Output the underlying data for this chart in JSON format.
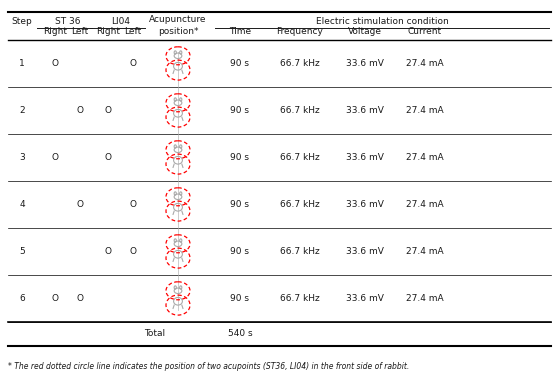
{
  "footnote": "* The red dotted circle line indicates the position of two acupoints (ST36, LI04) in the front side of rabbit.",
  "steps": [
    1,
    2,
    3,
    4,
    5,
    6
  ],
  "st36_right": [
    "O",
    "",
    "O",
    "",
    "",
    "O"
  ],
  "st36_left": [
    "",
    "O",
    "",
    "O",
    "",
    "O"
  ],
  "li04_right": [
    "",
    "O",
    "O",
    "",
    "O",
    ""
  ],
  "li04_left": [
    "O",
    "",
    "",
    "O",
    "O",
    ""
  ],
  "time": [
    "90 s",
    "90 s",
    "90 s",
    "90 s",
    "90 s",
    "90 s"
  ],
  "frequency": [
    "66.7 kHz",
    "66.7 kHz",
    "66.7 kHz",
    "66.7 kHz",
    "66.7 kHz",
    "66.7 kHz"
  ],
  "voltage": [
    "33.6 mV",
    "33.6 mV",
    "33.6 mV",
    "33.6 mV",
    "33.6 mV",
    "33.6 mV"
  ],
  "current": [
    "27.4 mA",
    "27.4 mA",
    "27.4 mA",
    "27.4 mA",
    "27.4 mA",
    "27.4 mA"
  ],
  "total_time": "540 s",
  "background_color": "#ffffff",
  "text_color": "#1a1a1a",
  "header_fontsize": 6.5,
  "body_fontsize": 6.5,
  "footnote_fontsize": 5.5
}
